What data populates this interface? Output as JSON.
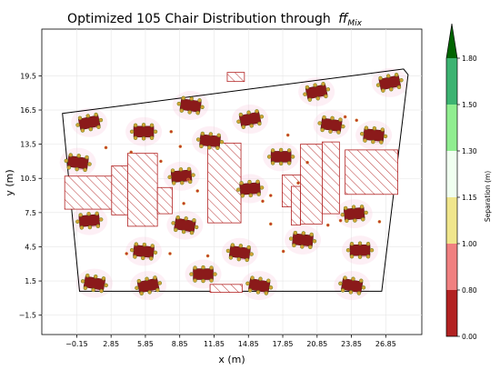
{
  "chart_data": {
    "type": "scatter",
    "title": "Optimized 105 Chair Distribution through",
    "title_math": "ff",
    "title_math_sub": "Mix",
    "xlabel": "x (m)",
    "ylabel": "y (m)",
    "xlim": [
      -3.2,
      30.0
    ],
    "ylim": [
      -3.2,
      23.6
    ],
    "xticks": [
      -0.15,
      2.85,
      5.85,
      8.85,
      11.85,
      14.85,
      17.85,
      20.85,
      23.85,
      26.85
    ],
    "xtick_labels": [
      "−0.15",
      "2.85",
      "5.85",
      "8.85",
      "11.85",
      "14.85",
      "17.85",
      "20.85",
      "23.85",
      "26.85"
    ],
    "yticks": [
      -1.5,
      1.5,
      4.5,
      7.5,
      10.5,
      13.5,
      16.5,
      19.5
    ],
    "ytick_labels": [
      "−1.5",
      "1.5",
      "4.5",
      "7.5",
      "10.5",
      "13.5",
      "16.5",
      "19.5"
    ],
    "grid": true,
    "room_outline": [
      [
        -1.4,
        16.2
      ],
      [
        28.4,
        20.1
      ],
      [
        28.8,
        19.6
      ],
      [
        26.5,
        0.6
      ],
      [
        0.1,
        0.6
      ]
    ],
    "obstacles": [
      [
        -1.2,
        7.8,
        4.3,
        2.9
      ],
      [
        2.9,
        7.3,
        1.4,
        4.3
      ],
      [
        4.3,
        6.3,
        2.6,
        6.4
      ],
      [
        6.9,
        7.4,
        1.3,
        2.3
      ],
      [
        11.3,
        6.6,
        2.9,
        7.0
      ],
      [
        13.0,
        19.0,
        1.5,
        0.8
      ],
      [
        17.8,
        8.0,
        1.7,
        2.8
      ],
      [
        18.6,
        6.4,
        0.8,
        3.4
      ],
      [
        19.4,
        6.5,
        1.9,
        7.0
      ],
      [
        21.3,
        7.4,
        1.5,
        6.3
      ],
      [
        23.3,
        9.1,
        4.6,
        3.9
      ],
      [
        11.5,
        0.5,
        2.8,
        0.7
      ]
    ],
    "groups": [
      [
        0.95,
        15.4
      ],
      [
        -0.05,
        11.9
      ],
      [
        0.95,
        6.8
      ],
      [
        1.4,
        1.3
      ],
      [
        5.7,
        14.6
      ],
      [
        5.7,
        4.1
      ],
      [
        6.1,
        1.1
      ],
      [
        9.8,
        16.9
      ],
      [
        9.0,
        10.7
      ],
      [
        9.3,
        6.4
      ],
      [
        10.9,
        2.1
      ],
      [
        11.5,
        13.8
      ],
      [
        15.0,
        15.7
      ],
      [
        14.1,
        4.0
      ],
      [
        15.0,
        9.6
      ],
      [
        15.8,
        1.1
      ],
      [
        17.7,
        12.4
      ],
      [
        19.6,
        5.1
      ],
      [
        20.8,
        18.1
      ],
      [
        22.1,
        15.2
      ],
      [
        24.1,
        7.4
      ],
      [
        23.9,
        1.1
      ],
      [
        24.6,
        4.2
      ],
      [
        25.8,
        14.3
      ],
      [
        27.2,
        18.9
      ]
    ],
    "loose_chairs": [
      [
        4.6,
        12.8
      ],
      [
        8.1,
        14.6
      ],
      [
        8.9,
        13.3
      ],
      [
        7.2,
        12.0
      ],
      [
        2.4,
        13.2
      ],
      [
        4.2,
        3.9
      ],
      [
        8.0,
        3.9
      ],
      [
        11.3,
        3.7
      ],
      [
        9.2,
        8.3
      ],
      [
        10.4,
        9.4
      ],
      [
        16.1,
        8.5
      ],
      [
        16.8,
        9.0
      ],
      [
        18.3,
        14.3
      ],
      [
        20.0,
        11.9
      ],
      [
        16.8,
        6.5
      ],
      [
        17.9,
        4.1
      ],
      [
        19.2,
        10.1
      ],
      [
        21.8,
        6.4
      ],
      [
        23.3,
        15.9
      ],
      [
        24.3,
        15.6
      ],
      [
        22.9,
        6.8
      ],
      [
        26.3,
        6.7
      ],
      [
        9.6,
        10.4
      ]
    ],
    "colorbar": {
      "label": "Separation (m)",
      "ticks": [
        "0.00",
        "0.80",
        "1.00",
        "1.15",
        "1.30",
        "1.50",
        "1.80"
      ],
      "colors": [
        "#b22222",
        "#f08080",
        "#f0e68c",
        "#f0fff0",
        "#90ee90",
        "#3cb371",
        "#006400"
      ]
    },
    "chair_fill": "#8b1a1a",
    "chair_edge": "#6b8e23",
    "obstacle_edge": "#b22222",
    "link_color": "#e9a9c3"
  }
}
